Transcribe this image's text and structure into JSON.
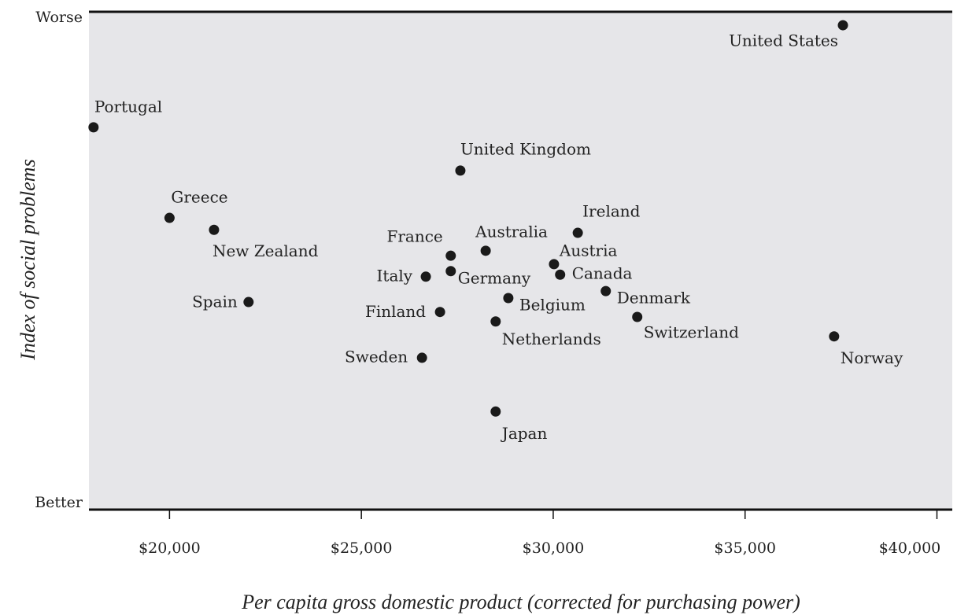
{
  "chart_data": {
    "type": "scatter",
    "x_label": "Per capita gross domestic product (corrected for purchasing power)",
    "y_label": "Index of social problems",
    "point_labels": [
      "United States",
      "Portugal",
      "United Kingdom",
      "Greece",
      "New Zealand",
      "Ireland",
      "Australia",
      "France",
      "Austria",
      "Italy",
      "Germany",
      "Canada",
      "Denmark",
      "Belgium",
      "Spain",
      "Finland",
      "Switzerland",
      "Netherlands",
      "Norway",
      "Sweden",
      "Japan"
    ],
    "x": [
      37550,
      18020,
      27580,
      20000,
      21160,
      30640,
      28240,
      27330,
      30020,
      26680,
      27330,
      30180,
      31370,
      28830,
      22060,
      27050,
      32190,
      28500,
      37320,
      26580,
      28500
    ],
    "values": [
      97.3,
      76.8,
      68.1,
      58.6,
      56.2,
      55.6,
      52.0,
      51.0,
      49.3,
      46.8,
      47.9,
      47.2,
      43.9,
      42.5,
      41.7,
      39.7,
      38.7,
      37.8,
      34.8,
      30.5,
      19.7
    ],
    "color": "#1a1a1a",
    "background": "#e6e6e9",
    "xlim": [
      17900,
      40400
    ],
    "xticks": [
      {
        "value": 20000,
        "label": "$20,000"
      },
      {
        "value": 25000,
        "label": "$25,000"
      },
      {
        "value": 30000,
        "label": "$30,000"
      },
      {
        "value": 35000,
        "label": "$35,000"
      },
      {
        "value": 40000,
        "label": "$40,000"
      }
    ],
    "ylim": [
      0,
      100
    ],
    "yticks": [
      {
        "value": 0,
        "label": "Better"
      },
      {
        "value": 100,
        "label": "Worse"
      }
    ]
  }
}
